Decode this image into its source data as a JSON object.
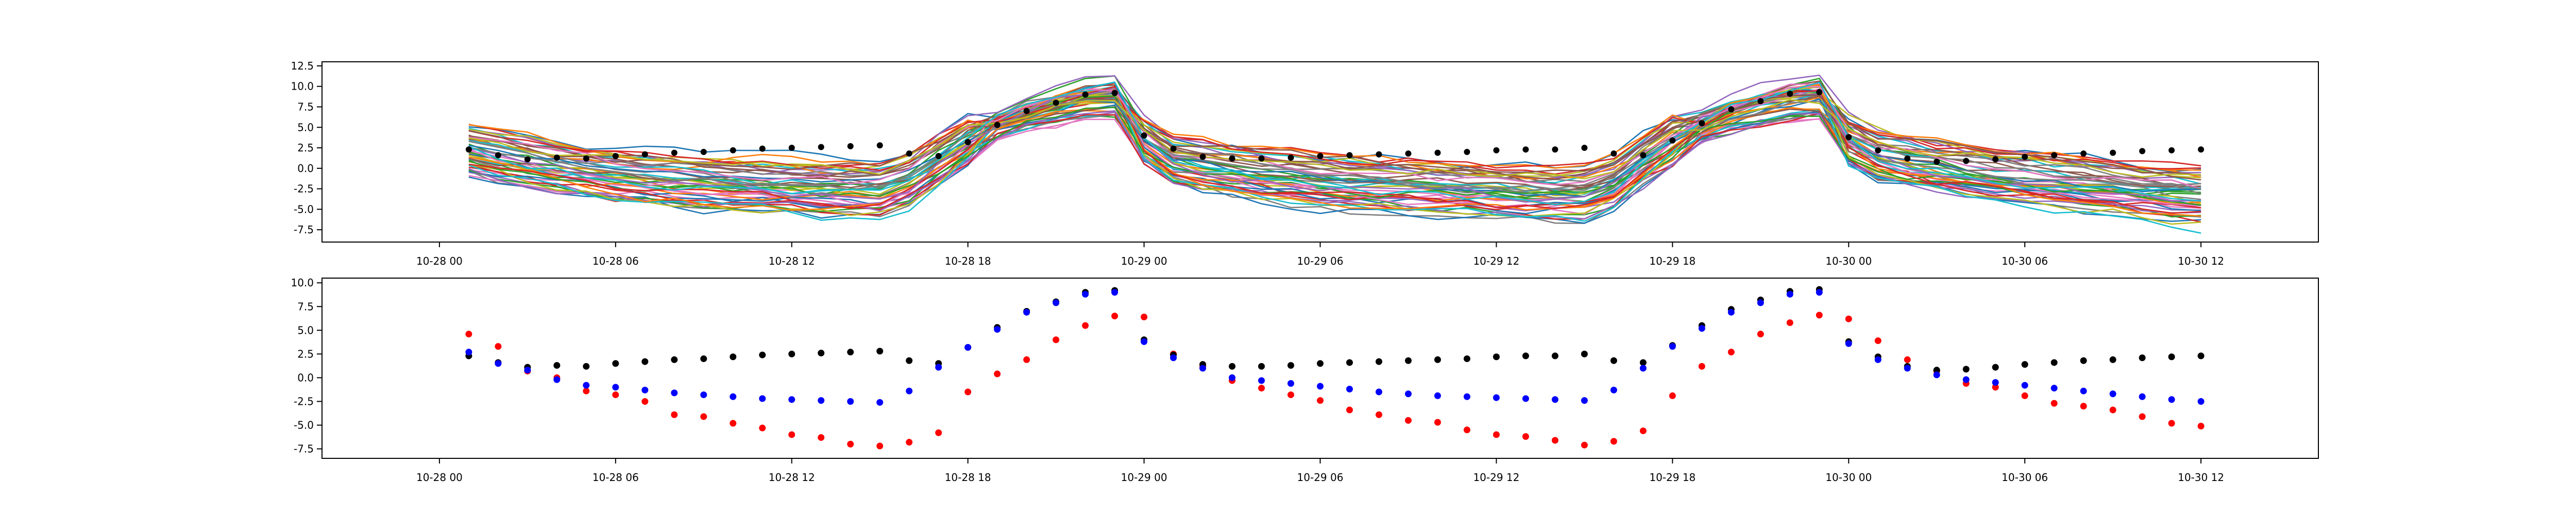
{
  "colors": {
    "ensemble_palette": [
      "#1f77b4",
      "#ff7f0e",
      "#2ca02c",
      "#d62728",
      "#9467bd",
      "#8c564b",
      "#e377c2",
      "#7f7f7f",
      "#bcbd22",
      "#17becf"
    ],
    "black_series": "#000000",
    "red_series": "#ff0000",
    "blue_series": "#0000ff"
  },
  "chart_data": [
    {
      "type": "line",
      "xlabel": "",
      "ylabel": "",
      "x_domain": [
        "2024-10-27 20:00",
        "2024-10-30 16:00"
      ],
      "xlim": [
        "10-27 20:00",
        "10-30 16:00"
      ],
      "ylim": [
        -9,
        13
      ],
      "x_tick_labels": [
        "10-28 00",
        "10-28 06",
        "10-28 12",
        "10-28 18",
        "10-29 00",
        "10-29 06",
        "10-29 12",
        "10-29 18",
        "10-30 00",
        "10-30 06",
        "10-30 12"
      ],
      "y_tick_labels": [
        "-7.5",
        "-5.0",
        "-2.5",
        "0.0",
        "2.5",
        "5.0",
        "7.5",
        "10.0",
        "12.5"
      ],
      "grid": false,
      "ensemble_member_count": 50,
      "ensemble_x": [
        "10-28 01",
        "10-28 02",
        "10-28 03",
        "10-28 04",
        "10-28 05",
        "10-28 06",
        "10-28 07",
        "10-28 08",
        "10-28 09",
        "10-28 10",
        "10-28 11",
        "10-28 12",
        "10-28 13",
        "10-28 14",
        "10-28 15",
        "10-28 16",
        "10-28 17",
        "10-28 18",
        "10-28 19",
        "10-28 20",
        "10-28 21",
        "10-28 22",
        "10-28 23",
        "10-29 00",
        "10-29 01",
        "10-29 02",
        "10-29 03",
        "10-29 04",
        "10-29 05",
        "10-29 06",
        "10-29 07",
        "10-29 08",
        "10-29 09",
        "10-29 10",
        "10-29 11",
        "10-29 12",
        "10-29 13",
        "10-29 14",
        "10-29 15",
        "10-29 16",
        "10-29 17",
        "10-29 18",
        "10-29 19",
        "10-29 20",
        "10-29 21",
        "10-29 22",
        "10-29 23",
        "10-30 00",
        "10-30 01",
        "10-30 02",
        "10-30 03",
        "10-30 04",
        "10-30 05",
        "10-30 06",
        "10-30 07",
        "10-30 08",
        "10-30 09",
        "10-30 10",
        "10-30 11",
        "10-30 12"
      ],
      "ensemble_center": [
        2.3,
        1.5,
        0.8,
        0.2,
        -0.3,
        -0.8,
        -1.2,
        -1.5,
        -1.8,
        -2.0,
        -2.2,
        -2.4,
        -2.6,
        -2.7,
        -2.8,
        -1.5,
        1.0,
        3.5,
        5.5,
        7.0,
        8.0,
        8.8,
        9.2,
        3.5,
        1.0,
        0.2,
        -0.3,
        -0.8,
        -1.2,
        -1.5,
        -1.8,
        -2.0,
        -2.2,
        -2.4,
        -2.6,
        -2.8,
        -3.0,
        -3.1,
        -3.2,
        -1.8,
        1.0,
        3.5,
        5.5,
        7.0,
        8.0,
        8.8,
        9.2,
        3.5,
        1.5,
        0.8,
        0.2,
        -0.3,
        -0.8,
        -1.2,
        -1.6,
        -2.0,
        -2.4,
        -2.8,
        -3.2,
        -3.6
      ],
      "black_x": [
        "10-28 01",
        "10-28 02",
        "10-28 03",
        "10-28 04",
        "10-28 05",
        "10-28 06",
        "10-28 07",
        "10-28 08",
        "10-28 09",
        "10-28 10",
        "10-28 11",
        "10-28 12",
        "10-28 13",
        "10-28 14",
        "10-28 15",
        "10-28 16",
        "10-28 17",
        "10-28 18",
        "10-28 19",
        "10-28 20",
        "10-28 21",
        "10-28 22",
        "10-28 23",
        "10-29 00",
        "10-29 01",
        "10-29 02",
        "10-29 03",
        "10-29 04",
        "10-29 05",
        "10-29 06",
        "10-29 07",
        "10-29 08",
        "10-29 09",
        "10-29 10",
        "10-29 11",
        "10-29 12",
        "10-29 13",
        "10-29 14",
        "10-29 15",
        "10-29 16",
        "10-29 17",
        "10-29 18",
        "10-29 19",
        "10-29 20",
        "10-29 21",
        "10-29 22",
        "10-29 23",
        "10-30 00",
        "10-30 01",
        "10-30 02",
        "10-30 03",
        "10-30 04",
        "10-30 05",
        "10-30 06",
        "10-30 07",
        "10-30 08",
        "10-30 09",
        "10-30 10",
        "10-30 11",
        "10-30 12"
      ],
      "black_points": [
        2.3,
        1.6,
        1.1,
        1.3,
        1.2,
        1.5,
        1.7,
        1.9,
        2.0,
        2.2,
        2.4,
        2.5,
        2.6,
        2.7,
        2.8,
        1.8,
        1.5,
        3.2,
        5.3,
        7.0,
        8.0,
        9.0,
        9.2,
        4.0,
        2.4,
        1.4,
        1.2,
        1.2,
        1.3,
        1.5,
        1.6,
        1.7,
        1.8,
        1.9,
        2.0,
        2.2,
        2.3,
        2.3,
        2.5,
        1.8,
        1.6,
        3.4,
        5.5,
        7.2,
        8.2,
        9.1,
        9.3,
        3.8,
        2.2,
        1.2,
        0.8,
        0.9,
        1.1,
        1.4,
        1.6,
        1.8,
        1.9,
        2.1,
        2.2,
        2.3
      ]
    },
    {
      "type": "scatter",
      "xlabel": "",
      "ylabel": "",
      "x_domain": [
        "2024-10-27 20:00",
        "2024-10-30 16:00"
      ],
      "xlim": [
        "10-27 20:00",
        "10-30 16:00"
      ],
      "ylim": [
        -8.5,
        10.5
      ],
      "x_tick_labels": [
        "10-28 00",
        "10-28 06",
        "10-28 12",
        "10-28 18",
        "10-29 00",
        "10-29 06",
        "10-29 12",
        "10-29 18",
        "10-30 00",
        "10-30 06",
        "10-30 12"
      ],
      "y_tick_labels": [
        "-7.5",
        "-5.0",
        "-2.5",
        "0.0",
        "2.5",
        "5.0",
        "7.5",
        "10.0"
      ],
      "grid": false,
      "x": [
        "10-28 01",
        "10-28 02",
        "10-28 03",
        "10-28 04",
        "10-28 05",
        "10-28 06",
        "10-28 07",
        "10-28 08",
        "10-28 09",
        "10-28 10",
        "10-28 11",
        "10-28 12",
        "10-28 13",
        "10-28 14",
        "10-28 15",
        "10-28 16",
        "10-28 17",
        "10-28 18",
        "10-28 19",
        "10-28 20",
        "10-28 21",
        "10-28 22",
        "10-28 23",
        "10-29 00",
        "10-29 01",
        "10-29 02",
        "10-29 03",
        "10-29 04",
        "10-29 05",
        "10-29 06",
        "10-29 07",
        "10-29 08",
        "10-29 09",
        "10-29 10",
        "10-29 11",
        "10-29 12",
        "10-29 13",
        "10-29 14",
        "10-29 15",
        "10-29 16",
        "10-29 17",
        "10-29 18",
        "10-29 19",
        "10-29 20",
        "10-29 21",
        "10-29 22",
        "10-29 23",
        "10-30 00",
        "10-30 01",
        "10-30 02",
        "10-30 03",
        "10-30 04",
        "10-30 05",
        "10-30 06",
        "10-30 07",
        "10-30 08",
        "10-30 09",
        "10-30 10",
        "10-30 11",
        "10-30 12"
      ],
      "series": [
        {
          "color": "red",
          "values": [
            4.6,
            3.3,
            0.7,
            0.0,
            -1.4,
            -1.8,
            -2.5,
            -3.9,
            -4.1,
            -4.8,
            -5.3,
            -6.0,
            -6.3,
            -7.0,
            -7.2,
            -6.8,
            -5.8,
            -1.5,
            0.4,
            1.9,
            4.0,
            5.5,
            6.5,
            6.4,
            2.5,
            1.2,
            -0.3,
            -1.1,
            -1.8,
            -2.4,
            -3.4,
            -3.9,
            -4.5,
            -4.7,
            -5.5,
            -6.0,
            -6.2,
            -6.6,
            -7.1,
            -6.7,
            -5.6,
            -1.9,
            1.2,
            2.7,
            4.6,
            5.8,
            6.6,
            6.2,
            3.9,
            1.9,
            0.7,
            -0.6,
            -1.0,
            -1.9,
            -2.7,
            -3.0,
            -3.4,
            -4.1,
            -4.8,
            -5.1
          ]
        },
        {
          "color": "black",
          "values": [
            2.3,
            1.6,
            1.1,
            1.3,
            1.2,
            1.5,
            1.7,
            1.9,
            2.0,
            2.2,
            2.4,
            2.5,
            2.6,
            2.7,
            2.8,
            1.8,
            1.5,
            3.2,
            5.3,
            7.0,
            8.0,
            9.0,
            9.2,
            4.0,
            2.4,
            1.4,
            1.2,
            1.2,
            1.3,
            1.5,
            1.6,
            1.7,
            1.8,
            1.9,
            2.0,
            2.2,
            2.3,
            2.3,
            2.5,
            1.8,
            1.6,
            3.4,
            5.5,
            7.2,
            8.2,
            9.1,
            9.3,
            3.8,
            2.2,
            1.2,
            0.8,
            0.9,
            1.1,
            1.4,
            1.6,
            1.8,
            1.9,
            2.1,
            2.2,
            2.3
          ]
        },
        {
          "color": "blue",
          "values": [
            2.7,
            1.5,
            0.8,
            -0.2,
            -0.8,
            -1.0,
            -1.3,
            -1.6,
            -1.8,
            -2.0,
            -2.2,
            -2.3,
            -2.4,
            -2.5,
            -2.6,
            -1.4,
            1.1,
            3.2,
            5.1,
            6.9,
            7.9,
            8.8,
            9.0,
            3.8,
            2.1,
            1.0,
            0.0,
            -0.3,
            -0.6,
            -0.9,
            -1.2,
            -1.5,
            -1.7,
            -1.9,
            -2.0,
            -2.1,
            -2.2,
            -2.3,
            -2.4,
            -1.3,
            1.0,
            3.3,
            5.2,
            6.9,
            7.9,
            8.8,
            9.0,
            3.6,
            1.9,
            1.0,
            0.3,
            -0.2,
            -0.5,
            -0.8,
            -1.1,
            -1.4,
            -1.7,
            -2.0,
            -2.3,
            -2.5
          ]
        }
      ]
    }
  ]
}
